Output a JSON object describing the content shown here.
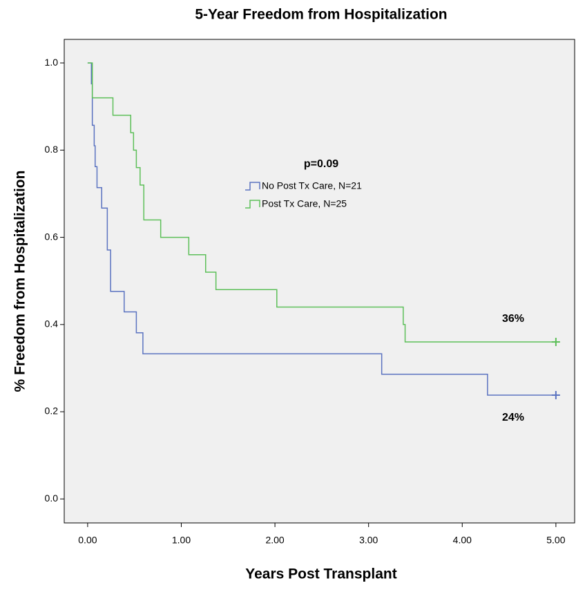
{
  "chart_data": {
    "type": "step",
    "title": "5-Year Freedom from Hospitalization",
    "x_label": "Years Post Transplant",
    "y_label": "% Freedom from Hospitalization",
    "xlim": [
      -0.25,
      5.2
    ],
    "ylim": [
      -0.055,
      1.054
    ],
    "xticks": [
      {
        "value": 0,
        "label": "0.00"
      },
      {
        "value": 1,
        "label": "1.00"
      },
      {
        "value": 2,
        "label": "2.00"
      },
      {
        "value": 3,
        "label": "3.00"
      },
      {
        "value": 4,
        "label": "4.00"
      },
      {
        "value": 5,
        "label": "5.00"
      }
    ],
    "yticks": [
      {
        "value": 0,
        "label": "0.0"
      },
      0.2,
      0.4,
      0.6,
      0.8,
      {
        "value": 1,
        "label": "1.0"
      }
    ],
    "legend_title": "p=0.09",
    "annotations": [
      "36%",
      "24%"
    ],
    "series": [
      {
        "name": "No Post Tx Care, N=21",
        "color": "#5a72c0",
        "x": [
          0,
          0.04,
          0.05,
          0.07,
          0.08,
          0.1,
          0.15,
          0.21,
          0.245,
          0.39,
          0.52,
          0.59,
          3.14,
          4.27,
          5.0
        ],
        "values": [
          1.0,
          0.952,
          0.857,
          0.81,
          0.762,
          0.714,
          0.667,
          0.571,
          0.476,
          0.429,
          0.381,
          0.333,
          0.286,
          0.238,
          0.238
        ]
      },
      {
        "name": "Post Tx Care, N=25",
        "color": "#5cbf58",
        "x": [
          0,
          0.05,
          0.27,
          0.46,
          0.49,
          0.52,
          0.56,
          0.6,
          0.78,
          1.08,
          1.26,
          1.37,
          2.02,
          3.37,
          3.39,
          5.0
        ],
        "values": [
          1.0,
          0.92,
          0.88,
          0.84,
          0.8,
          0.76,
          0.72,
          0.64,
          0.6,
          0.56,
          0.52,
          0.48,
          0.44,
          0.4,
          0.36,
          0.36
        ]
      }
    ]
  }
}
